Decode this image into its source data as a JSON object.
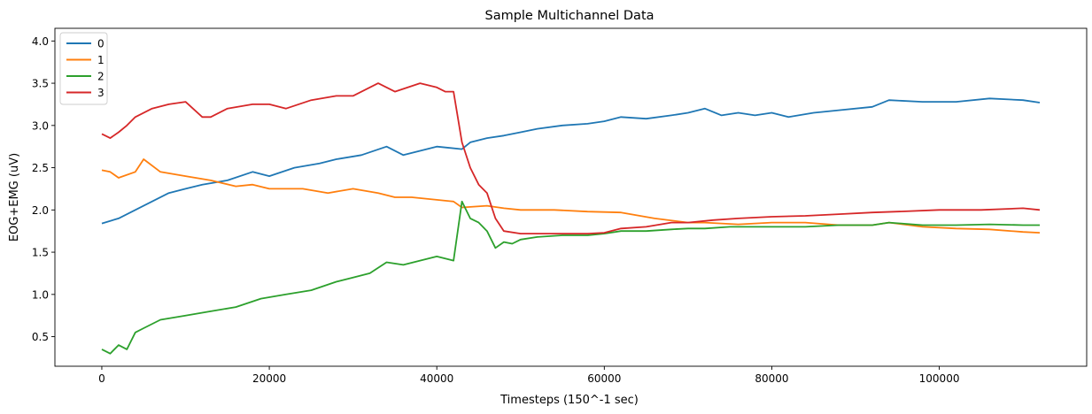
{
  "chart_data": {
    "type": "line",
    "title": "Sample Multichannel Data",
    "xlabel": "Timesteps (150^-1 sec)",
    "ylabel": "EOG+EMG (uV)",
    "xlim": [
      -5600,
      117600
    ],
    "ylim": [
      0.15,
      4.15
    ],
    "x_ticks": [
      0,
      20000,
      40000,
      60000,
      80000,
      100000
    ],
    "x_tick_labels": [
      "0",
      "20000",
      "40000",
      "60000",
      "80000",
      "100000"
    ],
    "y_ticks": [
      0.5,
      1.0,
      1.5,
      2.0,
      2.5,
      3.0,
      3.5,
      4.0
    ],
    "y_tick_labels": [
      "0.5",
      "1.0",
      "1.5",
      "2.0",
      "2.5",
      "3.0",
      "3.5",
      "4.0"
    ],
    "grid": false,
    "legend": {
      "position": "top-left"
    },
    "series": [
      {
        "name": "0",
        "color": "#1f77b4",
        "x": [
          0,
          2000,
          5000,
          8000,
          10000,
          12000,
          15000,
          18000,
          20000,
          23000,
          26000,
          28000,
          31000,
          34000,
          36000,
          40000,
          43000,
          44000,
          46000,
          48000,
          50000,
          52000,
          55000,
          58000,
          60000,
          62000,
          65000,
          68000,
          70000,
          72000,
          74000,
          76000,
          78000,
          80000,
          82000,
          85000,
          88000,
          92000,
          94000,
          98000,
          102000,
          106000,
          110000,
          112000
        ],
        "y": [
          1.84,
          1.9,
          2.05,
          2.2,
          2.25,
          2.3,
          2.35,
          2.45,
          2.4,
          2.5,
          2.55,
          2.6,
          2.65,
          2.75,
          2.65,
          2.75,
          2.72,
          2.8,
          2.85,
          2.88,
          2.92,
          2.96,
          3.0,
          3.02,
          3.05,
          3.1,
          3.08,
          3.12,
          3.15,
          3.2,
          3.12,
          3.15,
          3.12,
          3.15,
          3.1,
          3.15,
          3.18,
          3.22,
          3.3,
          3.28,
          3.28,
          3.32,
          3.3,
          3.27
        ]
      },
      {
        "name": "1",
        "color": "#ff7f0e",
        "x": [
          0,
          1000,
          2000,
          4000,
          5000,
          7000,
          10000,
          13000,
          16000,
          18000,
          20000,
          24000,
          27000,
          30000,
          33000,
          35000,
          37000,
          40000,
          42000,
          43000,
          46000,
          48000,
          50000,
          54000,
          58000,
          62000,
          66000,
          70000,
          72000,
          76000,
          80000,
          84000,
          88000,
          92000,
          94000,
          98000,
          102000,
          106000,
          110000,
          112000
        ],
        "y": [
          2.47,
          2.45,
          2.38,
          2.45,
          2.6,
          2.45,
          2.4,
          2.35,
          2.28,
          2.3,
          2.25,
          2.25,
          2.2,
          2.25,
          2.2,
          2.15,
          2.15,
          2.12,
          2.1,
          2.03,
          2.05,
          2.02,
          2.0,
          2.0,
          1.98,
          1.97,
          1.9,
          1.85,
          1.85,
          1.83,
          1.85,
          1.85,
          1.82,
          1.82,
          1.85,
          1.8,
          1.78,
          1.77,
          1.74,
          1.73
        ]
      },
      {
        "name": "2",
        "color": "#2ca02c",
        "x": [
          0,
          1000,
          2000,
          3000,
          4000,
          5000,
          7000,
          10000,
          13000,
          16000,
          19000,
          22000,
          25000,
          28000,
          30000,
          32000,
          34000,
          36000,
          38000,
          40000,
          42000,
          43000,
          44000,
          45000,
          46000,
          47000,
          48000,
          49000,
          50000,
          52000,
          55000,
          58000,
          60000,
          62000,
          65000,
          68000,
          70000,
          72000,
          75000,
          78000,
          80000,
          84000,
          88000,
          92000,
          94000,
          98000,
          102000,
          106000,
          110000,
          112000
        ],
        "y": [
          0.35,
          0.3,
          0.4,
          0.35,
          0.55,
          0.6,
          0.7,
          0.75,
          0.8,
          0.85,
          0.95,
          1.0,
          1.05,
          1.15,
          1.2,
          1.25,
          1.38,
          1.35,
          1.4,
          1.45,
          1.4,
          2.1,
          1.9,
          1.85,
          1.75,
          1.55,
          1.62,
          1.6,
          1.65,
          1.68,
          1.7,
          1.7,
          1.72,
          1.75,
          1.75,
          1.77,
          1.78,
          1.78,
          1.8,
          1.8,
          1.8,
          1.8,
          1.82,
          1.82,
          1.85,
          1.82,
          1.82,
          1.83,
          1.82,
          1.82
        ]
      },
      {
        "name": "3",
        "color": "#d62728",
        "x": [
          0,
          1000,
          2000,
          3000,
          4000,
          6000,
          8000,
          10000,
          12000,
          13000,
          15000,
          18000,
          20000,
          22000,
          25000,
          28000,
          30000,
          33000,
          35000,
          38000,
          40000,
          41000,
          42000,
          43000,
          44000,
          45000,
          46000,
          47000,
          48000,
          50000,
          52000,
          55000,
          58000,
          60000,
          62000,
          65000,
          68000,
          70000,
          73000,
          76000,
          80000,
          84000,
          88000,
          92000,
          95000,
          100000,
          105000,
          110000,
          112000
        ],
        "y": [
          2.9,
          2.85,
          2.92,
          3.0,
          3.1,
          3.2,
          3.25,
          3.28,
          3.1,
          3.1,
          3.2,
          3.25,
          3.25,
          3.2,
          3.3,
          3.35,
          3.35,
          3.5,
          3.4,
          3.5,
          3.45,
          3.4,
          3.4,
          2.8,
          2.5,
          2.3,
          2.2,
          1.9,
          1.75,
          1.72,
          1.72,
          1.72,
          1.72,
          1.73,
          1.78,
          1.8,
          1.85,
          1.85,
          1.88,
          1.9,
          1.92,
          1.93,
          1.95,
          1.97,
          1.98,
          2.0,
          2.0,
          2.02,
          2.0
        ]
      }
    ]
  }
}
